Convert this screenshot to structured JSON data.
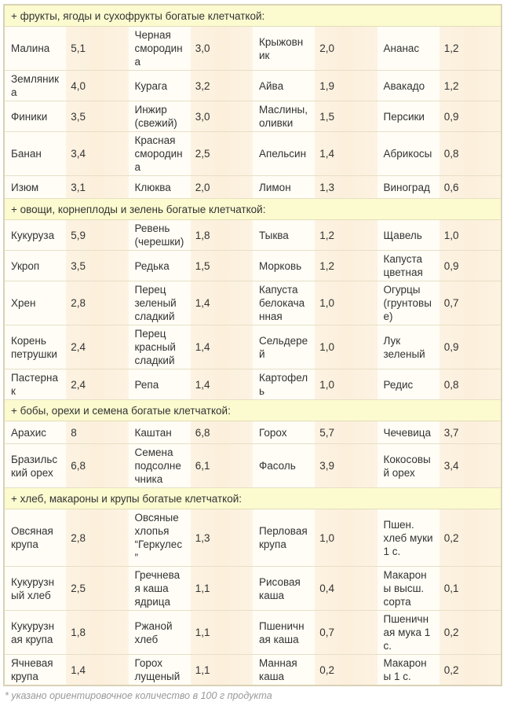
{
  "sections": [
    {
      "title": "+ фрукты, ягоды и сухофрукты богатые клетчаткой:",
      "rows": [
        [
          [
            "Малина",
            "5,1"
          ],
          [
            "Черная смородина",
            "3,0"
          ],
          [
            "Крыжовник",
            "2,0"
          ],
          [
            "Ананас",
            "1,2"
          ]
        ],
        [
          [
            "Земляника",
            "4,0"
          ],
          [
            "Курага",
            "3,2"
          ],
          [
            "Айва",
            "1,9"
          ],
          [
            "Авакадо",
            "1,2"
          ]
        ],
        [
          [
            "Финики",
            "3,5"
          ],
          [
            "Инжир (свежий)",
            "3,0"
          ],
          [
            "Маслины, оливки",
            "1,5"
          ],
          [
            "Персики",
            "0,9"
          ]
        ],
        [
          [
            "Банан",
            "3,4"
          ],
          [
            "Красная смородина",
            "2,5"
          ],
          [
            "Апельсин",
            "1,4"
          ],
          [
            "Абрикосы",
            "0,8"
          ]
        ],
        [
          [
            "Изюм",
            "3,1"
          ],
          [
            "Клюква",
            "2,0"
          ],
          [
            "Лимон",
            "1,3"
          ],
          [
            "Виноград",
            "0,6"
          ]
        ]
      ]
    },
    {
      "title": "+ овощи, корнеплоды и зелень богатые клетчаткой:",
      "rows": [
        [
          [
            "Кукуруза",
            "5,9"
          ],
          [
            "Ревень (черешки)",
            "1,8"
          ],
          [
            "Тыква",
            "1,2"
          ],
          [
            "Щавель",
            "1,0"
          ]
        ],
        [
          [
            "Укроп",
            "3,5"
          ],
          [
            "Редька",
            "1,5"
          ],
          [
            "Морковь",
            "1,2"
          ],
          [
            "Капуста цветная",
            "0,9"
          ]
        ],
        [
          [
            "Хрен",
            "2,8"
          ],
          [
            "Перец зеленый сладкий",
            "1,4"
          ],
          [
            "Капуста белокачанная",
            "1,0"
          ],
          [
            "Огурцы (грунтовые)",
            "0,7"
          ]
        ],
        [
          [
            "Корень петрушки",
            "2,4"
          ],
          [
            "Перец красный сладкий",
            "1,4"
          ],
          [
            "Сельдерей",
            "1,0"
          ],
          [
            "Лук зеленый",
            "0,9"
          ]
        ],
        [
          [
            "Пастернак",
            "2,4"
          ],
          [
            "Репа",
            "1,4"
          ],
          [
            "Картофель",
            "1,0"
          ],
          [
            "Редис",
            "0,8"
          ]
        ]
      ]
    },
    {
      "title": "+ бобы, орехи и семена богатые клетчаткой:",
      "rows": [
        [
          [
            "Арахис",
            "8"
          ],
          [
            "Каштан",
            "6,8"
          ],
          [
            "Горох",
            "5,7"
          ],
          [
            "Чечевица",
            "3,7"
          ]
        ],
        [
          [
            "Бразильский орех",
            "6,8"
          ],
          [
            "Семена подсолнечника",
            "6,1"
          ],
          [
            "Фасоль",
            "3,9"
          ],
          [
            "Кокосовый орех",
            "3,4"
          ]
        ]
      ]
    },
    {
      "title": "+ хлеб, макароны и крупы богатые клетчаткой:",
      "rows": [
        [
          [
            "Овсяная крупа",
            "2,8"
          ],
          [
            "Овсяные хлопья “Геркулес”",
            "1,3"
          ],
          [
            "Перловая крупа",
            "1,0"
          ],
          [
            "Пшен. хлеб муки 1 с.",
            "0,2"
          ]
        ],
        [
          [
            "Кукурузный хлеб",
            "2,5"
          ],
          [
            "Гречневая каша ядрица",
            "1,1"
          ],
          [
            "Рисовая каша",
            "0,4"
          ],
          [
            "Макароны высш. сорта",
            "0,1"
          ]
        ],
        [
          [
            "Кукурузная крупа",
            "1,8"
          ],
          [
            "Ржаной хлеб",
            "1,1"
          ],
          [
            "Пшеничная каша",
            "0,7"
          ],
          [
            "Пшеничная мука 1 с.",
            "0,2"
          ]
        ],
        [
          [
            "Ячневая крупа",
            "1,4"
          ],
          [
            "Горох лущеный",
            "1,1"
          ],
          [
            "Манная каша",
            "0,2"
          ],
          [
            "Макароны 1 с.",
            "0,2"
          ]
        ]
      ]
    }
  ],
  "footnote": "* указано ориентировочное количество в 100 г продукта"
}
